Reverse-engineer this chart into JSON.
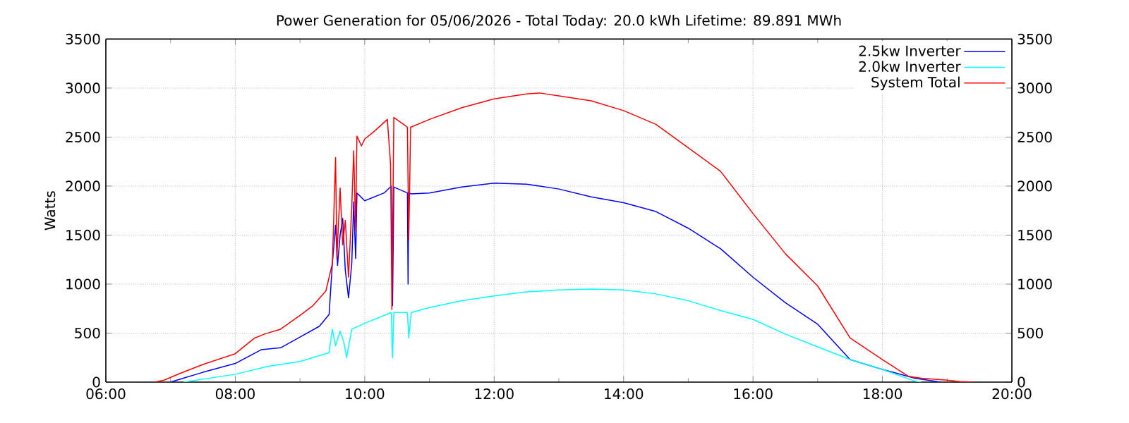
{
  "chart_data": {
    "type": "line",
    "title": "Power Generation for 05/06/2026 - Total Today: 20.0 kWh   Lifetime: 89.891 MWh",
    "ylabel": "Watts",
    "xlim": [
      6,
      20
    ],
    "xticks": [
      {
        "value": 6,
        "label": "06:00"
      },
      {
        "value": 8,
        "label": "08:00"
      },
      {
        "value": 10,
        "label": "10:00"
      },
      {
        "value": 12,
        "label": "12:00"
      },
      {
        "value": 14,
        "label": "14:00"
      },
      {
        "value": 16,
        "label": "16:00"
      },
      {
        "value": 18,
        "label": "18:00"
      },
      {
        "value": 20,
        "label": "20:00"
      }
    ],
    "ylim": [
      0,
      3500
    ],
    "yticks": [
      0,
      500,
      1000,
      1500,
      2000,
      2500,
      3000,
      3500
    ],
    "y2lim": [
      0,
      3500
    ],
    "y2ticks": [
      0,
      500,
      1000,
      1500,
      2000,
      2500,
      3000,
      3500
    ],
    "grid": true,
    "legend": "top right",
    "series": [
      {
        "name": "2.5kw Inverter",
        "color": "#0000ff",
        "x": [
          7.0,
          7.15,
          7.5,
          8.0,
          8.4,
          8.7,
          9.0,
          9.3,
          9.45,
          9.5,
          9.55,
          9.58,
          9.62,
          9.66,
          9.7,
          9.75,
          9.8,
          9.83,
          9.86,
          9.88,
          10.0,
          10.3,
          10.41,
          10.43,
          10.45,
          10.66,
          10.67,
          10.68,
          10.72,
          11.0,
          11.5,
          12.0,
          12.5,
          13.0,
          13.5,
          14.0,
          14.5,
          15.0,
          15.5,
          16.0,
          16.5,
          17.0,
          17.5,
          18.0,
          18.5,
          18.9
        ],
        "values": [
          0,
          30,
          100,
          190,
          330,
          350,
          460,
          570,
          690,
          1210,
          1600,
          1190,
          1500,
          1670,
          1140,
          860,
          1210,
          1840,
          1260,
          1930,
          1850,
          1930,
          2000,
          780,
          1990,
          1930,
          1000,
          1930,
          1920,
          1930,
          1990,
          2030,
          2020,
          1970,
          1890,
          1830,
          1740,
          1570,
          1360,
          1070,
          810,
          590,
          230,
          130,
          40,
          0
        ]
      },
      {
        "name": "2.0kw Inverter",
        "color": "#00ffff",
        "x": [
          7.2,
          8.0,
          8.5,
          9.0,
          9.45,
          9.5,
          9.55,
          9.62,
          9.68,
          9.72,
          9.8,
          10.0,
          10.41,
          10.43,
          10.45,
          10.66,
          10.68,
          10.72,
          11.0,
          11.5,
          12.0,
          12.5,
          13.0,
          13.5,
          14.0,
          14.5,
          15.0,
          15.5,
          16.0,
          16.5,
          17.0,
          17.5,
          18.0,
          18.5,
          18.6
        ],
        "values": [
          0,
          80,
          160,
          210,
          300,
          540,
          370,
          520,
          400,
          250,
          540,
          600,
          710,
          250,
          710,
          710,
          450,
          710,
          760,
          830,
          880,
          920,
          940,
          950,
          940,
          900,
          830,
          730,
          640,
          490,
          360,
          230,
          130,
          10,
          0
        ]
      },
      {
        "name": "System Total",
        "color": "#ff0000",
        "x": [
          6.75,
          6.9,
          7.15,
          7.5,
          8.0,
          8.3,
          8.45,
          8.7,
          9.0,
          9.2,
          9.4,
          9.5,
          9.55,
          9.57,
          9.62,
          9.66,
          9.7,
          9.75,
          9.8,
          9.83,
          9.86,
          9.88,
          9.95,
          10.0,
          10.15,
          10.35,
          10.4,
          10.42,
          10.45,
          10.6,
          10.66,
          10.68,
          10.71,
          11.0,
          11.5,
          12.0,
          12.5,
          12.7,
          13.0,
          13.5,
          14.0,
          14.5,
          15.0,
          15.5,
          16.0,
          16.5,
          17.0,
          17.5,
          18.0,
          18.4,
          18.6,
          19.0,
          19.2,
          19.4
        ],
        "values": [
          0,
          20,
          90,
          180,
          290,
          450,
          490,
          540,
          680,
          780,
          930,
          1210,
          2290,
          1260,
          1980,
          1400,
          1650,
          1070,
          1790,
          2360,
          1550,
          2510,
          2410,
          2480,
          2560,
          2680,
          2220,
          740,
          2700,
          2630,
          2600,
          1450,
          2600,
          2680,
          2800,
          2890,
          2940,
          2950,
          2920,
          2870,
          2770,
          2630,
          2390,
          2150,
          1720,
          1310,
          980,
          450,
          230,
          60,
          40,
          20,
          5,
          0
        ]
      }
    ]
  }
}
